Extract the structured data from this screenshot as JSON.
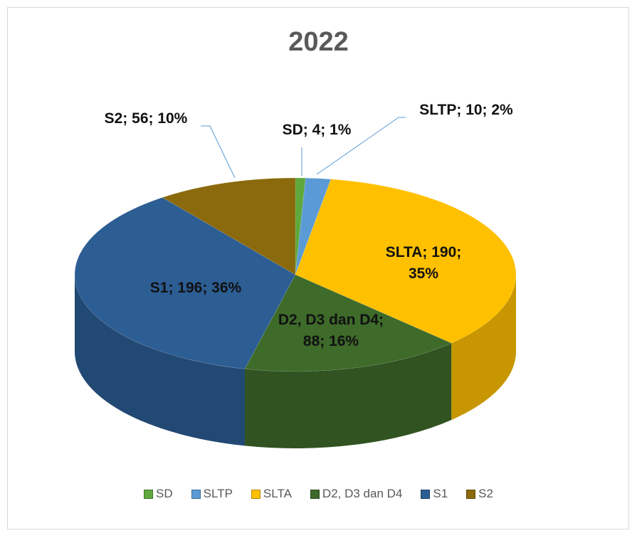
{
  "chart_data": {
    "type": "pie3d",
    "title": "2022",
    "categories": [
      "SD",
      "SLTP",
      "SLTA",
      "D2, D3 dan D4",
      "S1",
      "S2"
    ],
    "values": [
      4,
      10,
      190,
      88,
      196,
      56
    ],
    "value_labels": [
      "SD; 4; 1%",
      "SLTP; 10; 2%",
      "SLTA; 190; 35%",
      "D2, D3 dan D4; 88; 16%",
      "S1; 196; 36%",
      "S2; 56; 10%"
    ],
    "colors": [
      "#5ea83c",
      "#5b9bd5",
      "#ffc000",
      "#3e6a2a",
      "#2c5d93",
      "#8a6a0c"
    ],
    "legend": "bottom"
  }
}
